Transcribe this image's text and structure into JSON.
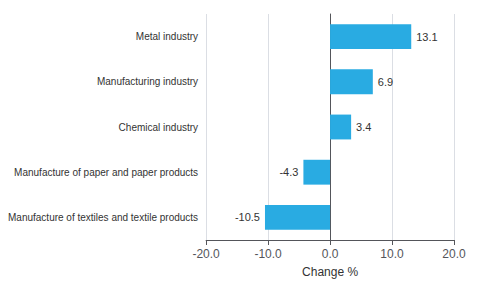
{
  "chart_data": {
    "type": "bar",
    "orientation": "horizontal",
    "categories": [
      "Manufacture of textiles and textile products",
      "Manufacture of paper and paper products",
      "Chemical industry",
      "Manufacturing industry",
      "Metal industry"
    ],
    "values": [
      -10.5,
      -4.3,
      3.4,
      6.9,
      13.1
    ],
    "color": "#29ABE2",
    "xlim": [
      -20.0,
      20.0
    ],
    "xticks": [
      {
        "value": -20.0,
        "label": "-20.0"
      },
      {
        "value": -10.0,
        "label": "-10.0"
      },
      {
        "value": 0.0,
        "label": "0.0"
      },
      {
        "value": 10.0,
        "label": "10.0"
      },
      {
        "value": 20.0,
        "label": "20.0"
      }
    ],
    "xlabel": "Change %",
    "grid": true,
    "data_labels": true
  }
}
